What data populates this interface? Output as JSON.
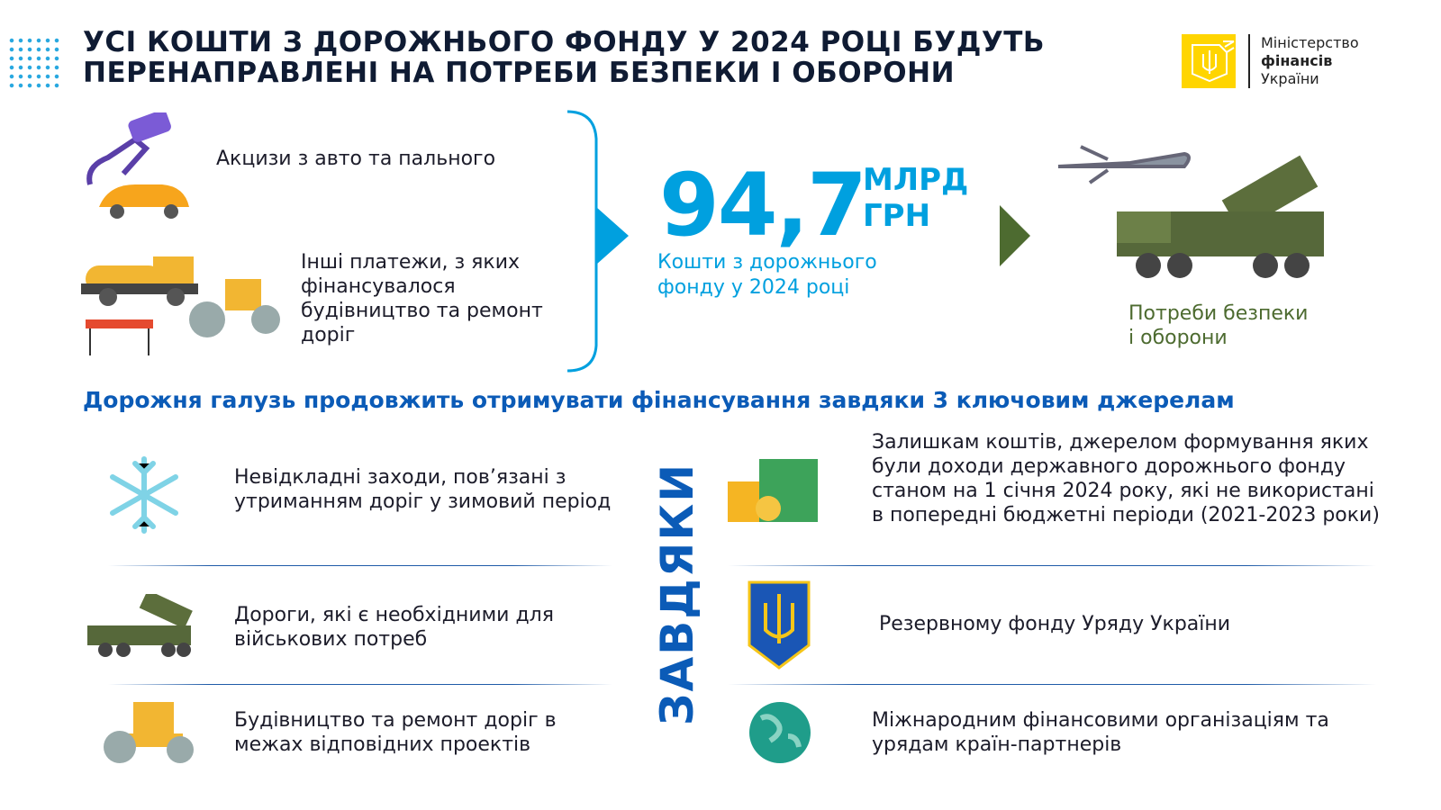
{
  "header": {
    "title_line1": "УСІ КОШТИ З ДОРОЖНЬОГО ФОНДУ У 2024 РОЦІ БУДУТЬ",
    "title_line2": "ПЕРЕНАПРАВЛЕНІ НА ПОТРЕБИ БЕЗПЕКИ І ОБОРОНИ"
  },
  "logo": {
    "line1": "Міністерство",
    "line2": "фінансів",
    "line3": "України"
  },
  "sources": [
    {
      "label": "Акцизи з авто та пального",
      "icon": "fuel-car-icon"
    },
    {
      "label": "Інші платежи, з яких фінансувалося будівництво та ремонт доріг",
      "icon": "road-construction-icon"
    }
  ],
  "total": {
    "value": "94,7",
    "unit_line1": "МЛРД",
    "unit_line2": "ГРН",
    "caption_line1": "Кошти з дорожнього",
    "caption_line2": "фонду у 2024 році"
  },
  "destination": {
    "line1": "Потреби безпеки",
    "line2": "і оборони",
    "icon": "military-icon"
  },
  "section_heading": "Дорожня галузь продовжить отримувати фінансування завдяки 3 ключовим джерелам",
  "vertical_label": "ЗАВДЯКИ",
  "left_items": [
    {
      "text": "Невідкладні заходи, пов’язані з утриманням доріг у зимовий період",
      "icon": "snowflake-icon"
    },
    {
      "text": "Дороги, які є необхідними для військових потреб",
      "icon": "rocket-launcher-icon"
    },
    {
      "text": "Будівництво та ремонт доріг в межах відповідних проектів",
      "icon": "road-roller-icon"
    }
  ],
  "right_items": [
    {
      "text": "Залишкам коштів, джерелом формування яких були доходи державного дорожнього фонду станом на 1 січня 2024 року, які не використані в попередні бюджетні періоди (2021-2023 роки)",
      "icon": "money-icon"
    },
    {
      "text": "Резервному фонду Уряду України",
      "icon": "trident-shield-icon"
    },
    {
      "text": "Міжнародним фінансовими організаціям та урядам країн-партнерів",
      "icon": "globe-icon"
    }
  ],
  "colors": {
    "title": "#0f1b33",
    "accent_blue": "#00a0df",
    "heading_blue": "#0b5bb7",
    "military_green": "#4d6b30",
    "logo_yellow": "#ffd500"
  }
}
